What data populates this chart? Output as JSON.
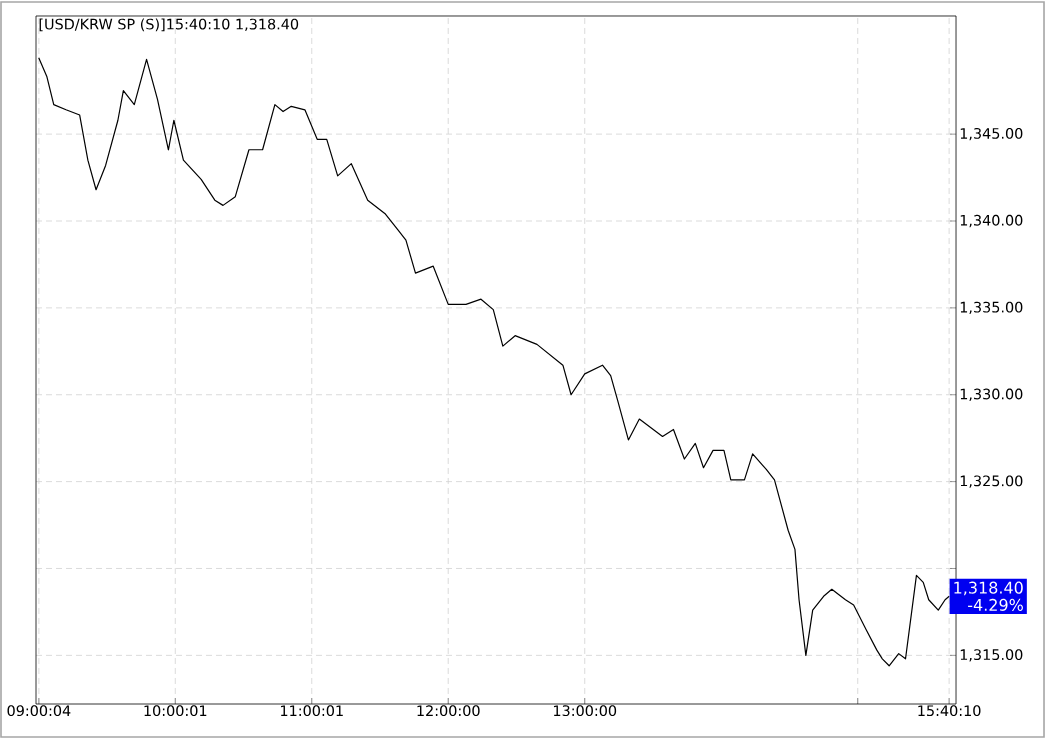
{
  "chart_data": {
    "type": "line",
    "title": "[USD/KRW SP (S)]15:40:10  1,318.40",
    "x": [
      9.0,
      9.06,
      9.11,
      9.2,
      9.3,
      9.36,
      9.42,
      9.49,
      9.58,
      9.62,
      9.7,
      9.79,
      9.87,
      9.95,
      9.99,
      10.06,
      10.19,
      10.29,
      10.35,
      10.44,
      10.54,
      10.64,
      10.73,
      10.79,
      10.85,
      10.95,
      11.04,
      11.11,
      11.19,
      11.29,
      11.41,
      11.54,
      11.63,
      11.69,
      11.76,
      11.89,
      12.0,
      12.13,
      12.24,
      12.33,
      12.4,
      12.49,
      12.65,
      12.84,
      12.9,
      13.0,
      13.13,
      13.19,
      13.24,
      13.32,
      13.4,
      13.57,
      13.65,
      13.73,
      13.81,
      13.87,
      13.94,
      14.02,
      14.07,
      14.17,
      14.23,
      14.33,
      14.39,
      14.49,
      14.54,
      14.57,
      14.62,
      14.67,
      14.75,
      14.81,
      14.91,
      14.97,
      15.06,
      15.14,
      15.18,
      15.23,
      15.3,
      15.35,
      15.43,
      15.48,
      15.52,
      15.59,
      15.64,
      15.67
    ],
    "series": [
      {
        "color": "#000000",
        "values": [
          1349.4,
          1348.3,
          1346.7,
          1346.4,
          1346.1,
          1343.5,
          1341.8,
          1343.2,
          1345.8,
          1347.5,
          1346.7,
          1349.3,
          1347.0,
          1344.1,
          1345.8,
          1343.5,
          1342.4,
          1341.2,
          1340.9,
          1341.4,
          1344.1,
          1344.1,
          1346.7,
          1346.3,
          1346.6,
          1346.4,
          1344.7,
          1344.7,
          1342.6,
          1343.3,
          1341.2,
          1340.4,
          1339.5,
          1338.9,
          1337.0,
          1337.4,
          1335.2,
          1335.2,
          1335.5,
          1334.9,
          1332.8,
          1333.4,
          1332.9,
          1331.7,
          1330.0,
          1331.2,
          1331.7,
          1331.1,
          1329.7,
          1327.4,
          1328.6,
          1327.6,
          1328.0,
          1326.3,
          1327.2,
          1325.8,
          1326.8,
          1326.8,
          1325.1,
          1325.1,
          1326.6,
          1325.7,
          1325.1,
          1322.2,
          1321.1,
          1318.2,
          1315.0,
          1317.6,
          1318.4,
          1318.8,
          1318.2,
          1317.9,
          1316.5,
          1315.3,
          1314.8,
          1314.4,
          1315.1,
          1314.8,
          1319.6,
          1319.2,
          1318.2,
          1317.6,
          1318.2,
          1318.4
        ]
      }
    ],
    "xlim": [
      8.98,
      15.72
    ],
    "xticks": [
      {
        "value": 9.0011,
        "label": "09:00:04"
      },
      {
        "value": 10.0003,
        "label": "10:00:01"
      },
      {
        "value": 11.0003,
        "label": "11:00:01"
      },
      {
        "value": 12,
        "label": "12:00:00"
      },
      {
        "value": 13,
        "label": "13:00:00"
      },
      {
        "value": 15.0,
        "label": null
      },
      {
        "value": 15.6694,
        "label": "15:40:10"
      }
    ],
    "ylim": [
      1312.2,
      1351.8
    ],
    "yticks": [
      {
        "value": 1315,
        "label": "1,315.00"
      },
      {
        "value": 1320,
        "label": null
      },
      {
        "value": 1325,
        "label": "1,325.00"
      },
      {
        "value": 1330,
        "label": "1,330.00"
      },
      {
        "value": 1335,
        "label": "1,335.00"
      },
      {
        "value": 1340,
        "label": "1,340.00"
      },
      {
        "value": 1345,
        "label": "1,345.00"
      }
    ],
    "annotations": [
      {
        "text": "1,318.40",
        "x": 15.67,
        "y": 1318.4
      },
      "-4.29%"
    ],
    "grid": true,
    "marker": "none",
    "line_style": "solid"
  }
}
